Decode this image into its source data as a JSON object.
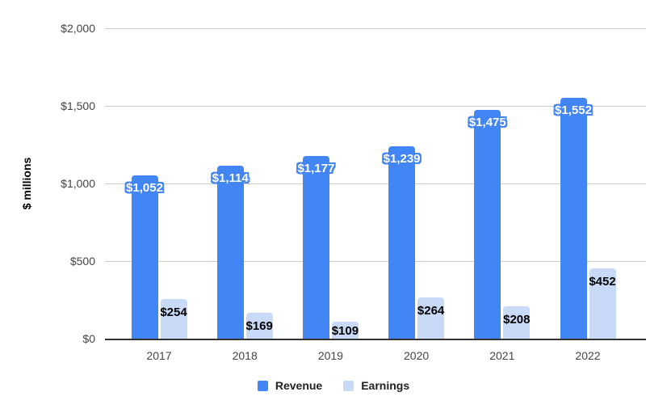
{
  "chart": {
    "background": "#ffffff"
  },
  "chart_data": {
    "type": "bar",
    "title": "",
    "xlabel": "",
    "ylabel": "$ millions",
    "categories": [
      "2017",
      "2018",
      "2019",
      "2020",
      "2021",
      "2022"
    ],
    "series": [
      {
        "name": "Revenue",
        "color": "#4285F4",
        "values": [
          1052,
          1114,
          1177,
          1239,
          1475,
          1552
        ],
        "data_labels": [
          "$1,052",
          "$1,114",
          "$1,177",
          "$1,239",
          "$1,475",
          "$1,552"
        ],
        "label_text_color": "#ffffff",
        "label_outline_color": "#4285F4"
      },
      {
        "name": "Earnings",
        "color": "#C9DAF8",
        "values": [
          254,
          169,
          109,
          264,
          208,
          452
        ],
        "data_labels": [
          "$254",
          "$169",
          "$109",
          "$264",
          "$208",
          "$452"
        ],
        "label_text_color": "#000000"
      }
    ],
    "ylim": [
      0,
      2000
    ],
    "yticks": [
      {
        "value": 0,
        "label": "$0"
      },
      {
        "value": 500,
        "label": "$500"
      },
      {
        "value": 1000,
        "label": "$1,000"
      },
      {
        "value": 1500,
        "label": "$1,500"
      },
      {
        "value": 2000,
        "label": "$2,000"
      }
    ],
    "grid": true,
    "gridline_color": "#cccccc",
    "axis_line_color": "#333333",
    "tick_label_color": "#444444",
    "legend_position": "bottom"
  }
}
